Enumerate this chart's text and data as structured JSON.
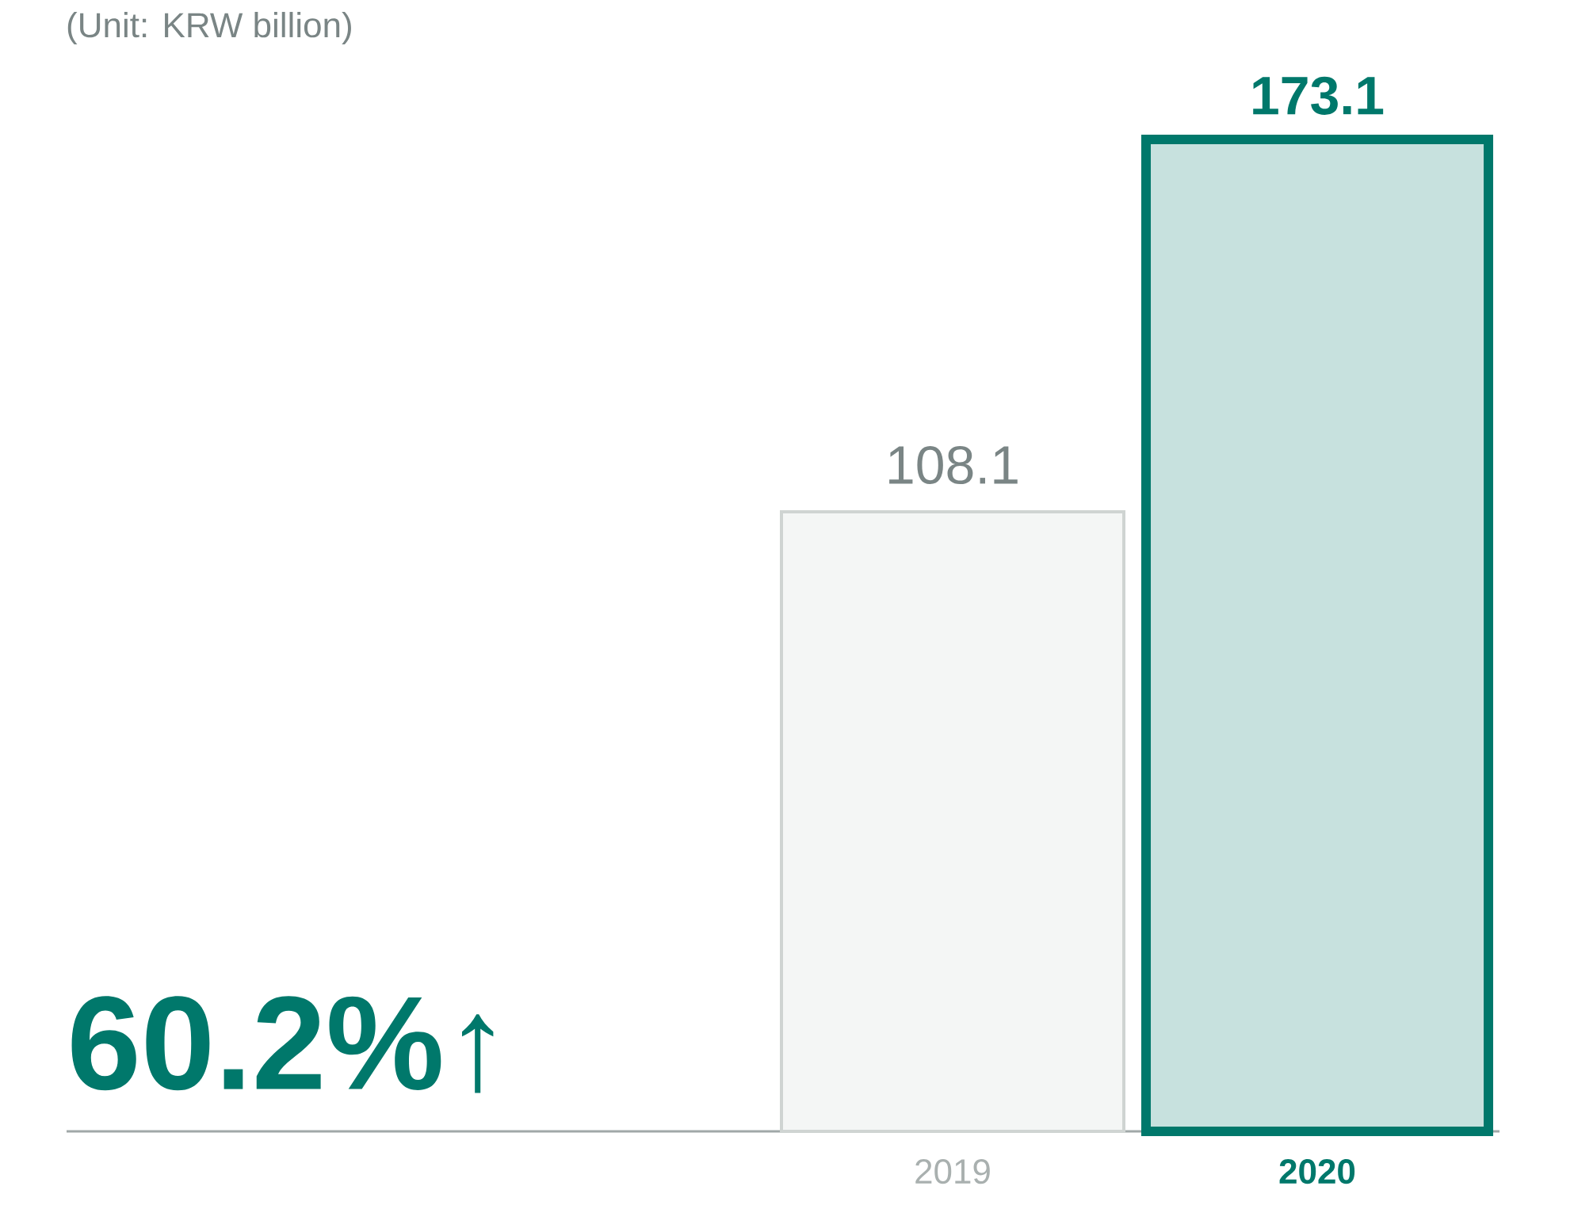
{
  "chart_data": {
    "type": "bar",
    "title": "(Unit: KRW billion)",
    "categories": [
      "2019",
      "2020"
    ],
    "values": [
      108.1,
      173.1
    ],
    "colors": [
      "#cfd4d2",
      "#00786b"
    ],
    "data_labels": true,
    "annotations": [
      "60.2%↑"
    ]
  }
}
